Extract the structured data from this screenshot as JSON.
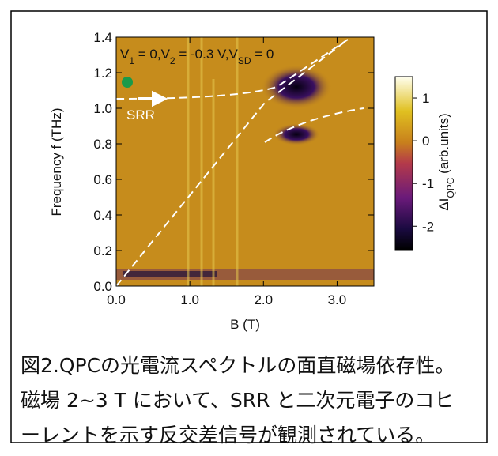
{
  "chart_data": {
    "type": "heatmap",
    "xlabel": "B (T)",
    "ylabel": "Frequency f (THz)",
    "xlim": [
      0,
      3.5
    ],
    "ylim": [
      0,
      1.4
    ],
    "xticks": [
      {
        "value": 0,
        "label": "0.0"
      },
      {
        "value": 1,
        "label": "1.0"
      },
      {
        "value": 2,
        "label": "2.0"
      },
      {
        "value": 3,
        "label": "3.0"
      }
    ],
    "yticks": [
      {
        "value": 0,
        "label": "0.0"
      },
      {
        "value": 0.2,
        "label": "0.2"
      },
      {
        "value": 0.4,
        "label": "0.4"
      },
      {
        "value": 0.6,
        "label": "0.6"
      },
      {
        "value": 0.8,
        "label": "0.8"
      },
      {
        "value": 1,
        "label": "1.0"
      },
      {
        "value": 1.2,
        "label": "1.2"
      },
      {
        "value": 1.4,
        "label": "1.4"
      }
    ],
    "annotation": [
      {
        "text": "V"
      },
      {
        "sub": "1"
      },
      {
        "text": " = 0,V"
      },
      {
        "sub": "2"
      },
      {
        "text": " = -0.3 V,V"
      },
      {
        "sub": "SD"
      },
      {
        "text": " = 0"
      }
    ],
    "arrow_label": "SRR",
    "colorbar": {
      "label": [
        {
          "text": "ΔI"
        },
        {
          "sub": "QPC"
        },
        {
          "text": " (arb.units)"
        }
      ],
      "lim": [
        -2.55,
        1.5
      ],
      "ticks": [
        1,
        0,
        -1,
        -2
      ]
    }
  },
  "caption": [
    "図2.QPCの光電流スペクトルの面直磁場依存性。",
    "磁場 2~3 T において、SRR と二次元電子のコヒ",
    "ーレントを示す反交差信号が観測されている。"
  ]
}
